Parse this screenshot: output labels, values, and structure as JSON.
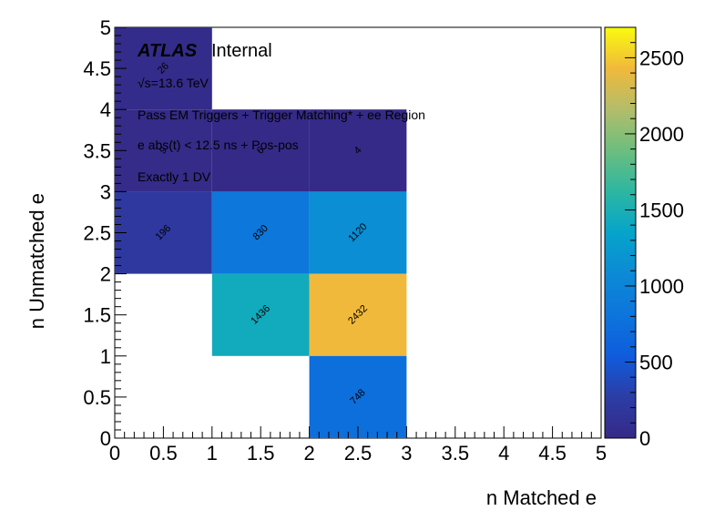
{
  "chart_data": {
    "type": "heatmap",
    "xlabel": "n Matched e",
    "ylabel": "n Unmatched e",
    "xlim": [
      0,
      5
    ],
    "ylim": [
      0,
      5
    ],
    "x_ticks": [
      "0",
      "0.5",
      "1",
      "1.5",
      "2",
      "2.5",
      "3",
      "3.5",
      "4",
      "4.5",
      "5"
    ],
    "y_ticks": [
      "0",
      "0.5",
      "1",
      "1.5",
      "2",
      "2.5",
      "3",
      "3.5",
      "4",
      "4.5",
      "5"
    ],
    "zlim": [
      0,
      2700
    ],
    "colorbar_ticks": [
      "0",
      "500",
      "1000",
      "1500",
      "2000",
      "2500"
    ],
    "cells": [
      {
        "x": 0,
        "y": 4,
        "value": 26,
        "label": "26"
      },
      {
        "x": 0,
        "y": 3,
        "value": 9,
        "label": "9"
      },
      {
        "x": 1,
        "y": 3,
        "value": 6,
        "label": "6"
      },
      {
        "x": 2,
        "y": 3,
        "value": 4,
        "label": "4"
      },
      {
        "x": 0,
        "y": 2,
        "value": 196,
        "label": "196"
      },
      {
        "x": 1,
        "y": 2,
        "value": 830,
        "label": "830"
      },
      {
        "x": 2,
        "y": 2,
        "value": 1120,
        "label": "1120"
      },
      {
        "x": 1,
        "y": 1,
        "value": 1436,
        "label": "1436"
      },
      {
        "x": 2,
        "y": 1,
        "value": 2432,
        "label": "2432"
      },
      {
        "x": 2,
        "y": 0,
        "value": 748,
        "label": "748"
      }
    ],
    "colormap": "viridis-like",
    "grid": false
  },
  "annotations": {
    "atlas": "ATLAS",
    "internal": "Internal",
    "energy": "√s=13.6 TeV",
    "line1": "Pass EM Triggers + Trigger Matching* + ee Region",
    "line2": "e abs(t) < 12.5 ns + Pos-pos",
    "line3": "Exactly 1 DV"
  }
}
